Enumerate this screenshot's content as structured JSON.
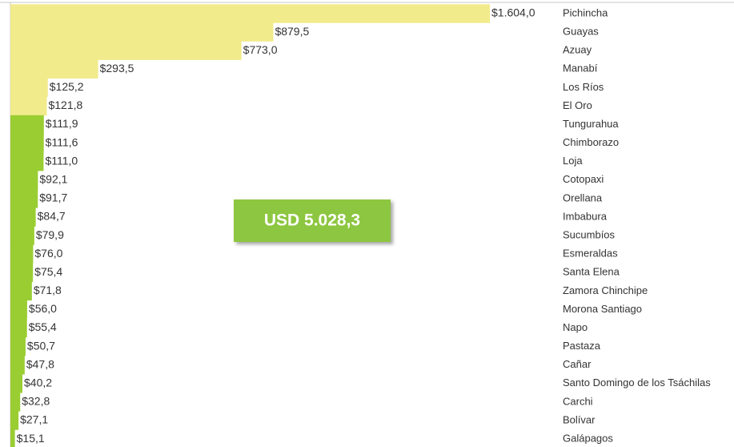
{
  "chart_data": {
    "type": "hbar",
    "categories": [
      "Pichincha",
      "Guayas",
      "Azuay",
      "Manabí",
      "Los Ríos",
      "El Oro",
      "Tungurahua",
      "Chimborazo",
      "Loja",
      "Cotopaxi",
      "Orellana",
      "Imbabura",
      "Sucumbíos",
      "Esmeraldas",
      "Santa Elena",
      "Zamora Chinchipe",
      "Morona Santiago",
      "Napo",
      "Pastaza",
      "Cañar",
      "Santo Domingo de los Tsáchilas",
      "Carchi",
      "Bolívar",
      "Galápagos"
    ],
    "values": [
      1604.0,
      879.5,
      773.0,
      293.5,
      125.2,
      121.8,
      111.9,
      111.6,
      111.0,
      92.1,
      91.7,
      84.7,
      79.9,
      76.0,
      75.4,
      71.8,
      56.0,
      55.4,
      50.7,
      47.8,
      40.2,
      32.8,
      27.1,
      15.1
    ],
    "value_labels": [
      "$1.604,0",
      "$879,5",
      "$773,0",
      "$293,5",
      "$125,2",
      "$121,8",
      "$111,9",
      "$111,6",
      "$111,0",
      "$92,1",
      "$91,7",
      "$84,7",
      "$79,9",
      "$76,0",
      "$75,4",
      "$71,8",
      "$56,0",
      "$55,4",
      "$50,7",
      "$47,8",
      "$40,2",
      "$32,8",
      "$27,1",
      "$15,1"
    ],
    "colors": [
      "#f1eb8c",
      "#f1eb8c",
      "#f1eb8c",
      "#f1eb8c",
      "#f1eb8c",
      "#f1eb8c",
      "#9acd32",
      "#9acd32",
      "#9acd32",
      "#9acd32",
      "#9acd32",
      "#9acd32",
      "#9acd32",
      "#9acd32",
      "#9acd32",
      "#9acd32",
      "#9acd32",
      "#9acd32",
      "#9acd32",
      "#9acd32",
      "#9acd32",
      "#9acd32",
      "#9acd32",
      "#9acd32"
    ],
    "xlim": [
      0,
      1604
    ],
    "annotation": "USD 5.028,3"
  }
}
